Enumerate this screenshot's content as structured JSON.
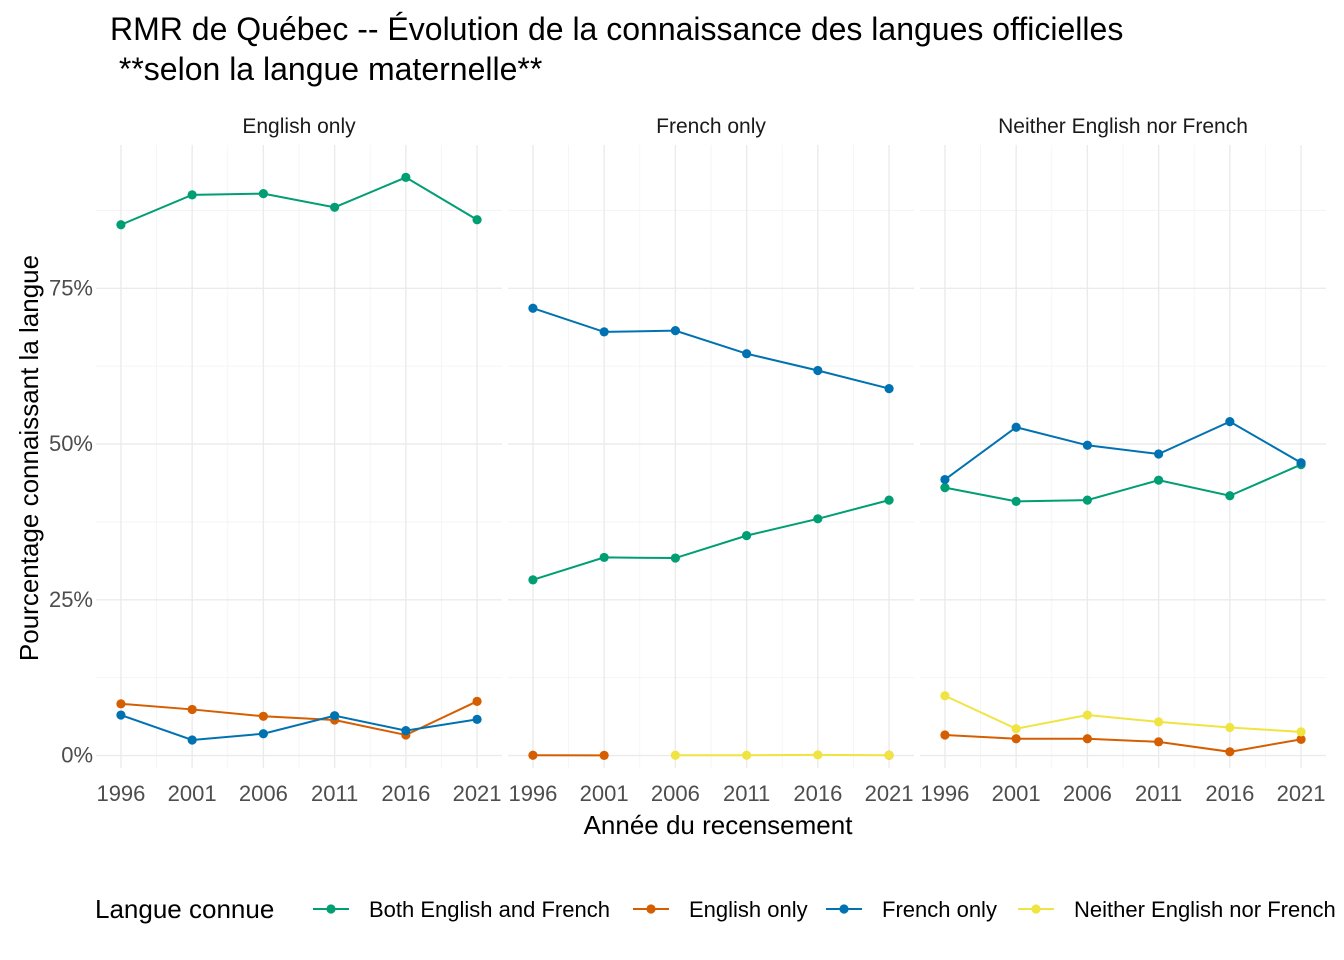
{
  "chart_data": {
    "type": "line",
    "title": "RMR de Québec -- Évolution de la connaissance des langues officielles",
    "subtitle": " **selon la langue maternelle**",
    "xlabel": "Année du recensement",
    "ylabel": "Pourcentage connaissant la langue",
    "x": [
      1996,
      2001,
      2006,
      2011,
      2016,
      2021
    ],
    "x_ticks": [
      "1996",
      "2001",
      "2006",
      "2011",
      "2016",
      "2021"
    ],
    "y_ticks": [
      "0%",
      "25%",
      "50%",
      "75%"
    ],
    "ylim": [
      -2,
      98
    ],
    "grid": true,
    "legend": {
      "title": "Langue connue",
      "position": "bottom",
      "entries": [
        {
          "name": "Both English and French",
          "color": "#009E73"
        },
        {
          "name": "English only",
          "color": "#D55E00"
        },
        {
          "name": "French only",
          "color": "#0072B2"
        },
        {
          "name": "Neither English nor French",
          "color": "#F0E442"
        }
      ]
    },
    "panels": [
      {
        "label": "English only",
        "series": [
          {
            "name": "Both English and French",
            "color": "#009E73",
            "values": [
              85.2,
              90.0,
              90.2,
              88.0,
              92.8,
              86.0
            ]
          },
          {
            "name": "English only",
            "color": "#D55E00",
            "values": [
              8.3,
              7.4,
              6.3,
              5.7,
              3.3,
              8.7
            ]
          },
          {
            "name": "French only",
            "color": "#0072B2",
            "values": [
              6.5,
              2.5,
              3.5,
              6.4,
              4.0,
              5.8
            ]
          }
        ]
      },
      {
        "label": "French only",
        "series": [
          {
            "name": "Both English and French",
            "color": "#009E73",
            "values": [
              28.2,
              31.8,
              31.7,
              35.3,
              38.0,
              41.0
            ]
          },
          {
            "name": "English only",
            "color": "#D55E00",
            "values": [
              0.05,
              0.03,
              null,
              null,
              null,
              0.05
            ]
          },
          {
            "name": "French only",
            "color": "#0072B2",
            "values": [
              71.8,
              68.0,
              68.2,
              64.5,
              61.8,
              58.9
            ]
          },
          {
            "name": "Neither English nor French",
            "color": "#F0E442",
            "values": [
              null,
              null,
              0.05,
              0.05,
              0.1,
              0.05
            ]
          }
        ]
      },
      {
        "label": "Neither English nor French",
        "series": [
          {
            "name": "Both English and French",
            "color": "#009E73",
            "values": [
              43.0,
              40.8,
              41.0,
              44.2,
              41.7,
              46.7
            ]
          },
          {
            "name": "English only",
            "color": "#D55E00",
            "values": [
              3.3,
              2.7,
              2.7,
              2.2,
              0.6,
              2.6
            ]
          },
          {
            "name": "French only",
            "color": "#0072B2",
            "values": [
              44.3,
              52.7,
              49.8,
              48.4,
              53.6,
              47.0
            ]
          },
          {
            "name": "Neither English nor French",
            "color": "#F0E442",
            "values": [
              9.6,
              4.3,
              6.5,
              5.4,
              4.5,
              3.8
            ]
          }
        ]
      }
    ]
  }
}
